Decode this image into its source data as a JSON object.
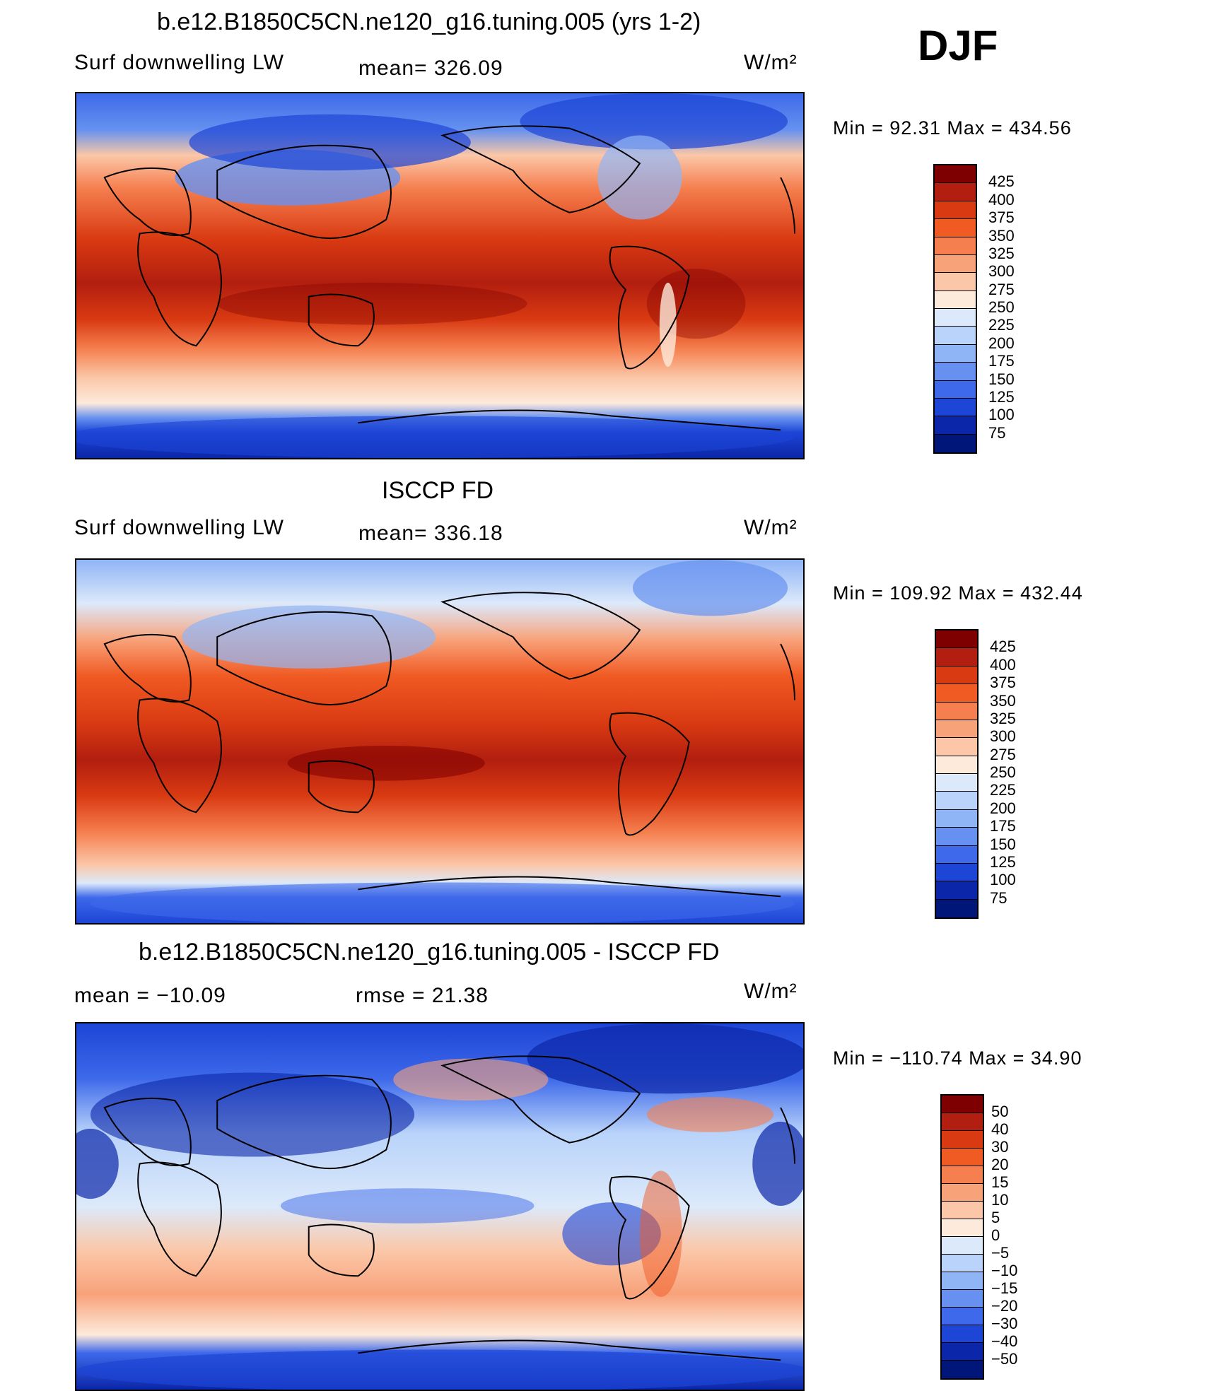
{
  "header": {
    "season": "DJF"
  },
  "panels": [
    {
      "id": "model",
      "title": "b.e12.B1850C5CN.ne120_g16.tuning.005 (yrs 1-2)",
      "left_label": "Surf downwelling LW",
      "center_label": "mean=  326.09",
      "units": "W/m²",
      "minmax": "Min =   92.31  Max  =  434.56",
      "colorbar": {
        "labels": [
          "425",
          "400",
          "375",
          "350",
          "325",
          "300",
          "275",
          "250",
          "225",
          "200",
          "175",
          "150",
          "125",
          "100",
          "75"
        ],
        "colors": [
          "#7f0000",
          "#b21e0f",
          "#d93a12",
          "#f05a23",
          "#f57f4f",
          "#f8a27a",
          "#fbc7a8",
          "#fdeadb",
          "#dce9fa",
          "#b9d3fa",
          "#90b5f6",
          "#6691f0",
          "#3d69ea",
          "#1d45d6",
          "#0b26a8",
          "#001678"
        ]
      }
    },
    {
      "id": "obs",
      "title": "ISCCP FD",
      "left_label": "Surf downwelling LW",
      "center_label": "mean=  336.18",
      "units": "W/m²",
      "minmax": "Min  =  109.92  Max  =  432.44",
      "colorbar": {
        "labels": [
          "425",
          "400",
          "375",
          "350",
          "325",
          "300",
          "275",
          "250",
          "225",
          "200",
          "175",
          "150",
          "125",
          "100",
          "75"
        ],
        "colors": [
          "#7f0000",
          "#b21e0f",
          "#d93a12",
          "#f05a23",
          "#f57f4f",
          "#f8a27a",
          "#fbc7a8",
          "#fdeadb",
          "#dce9fa",
          "#b9d3fa",
          "#90b5f6",
          "#6691f0",
          "#3d69ea",
          "#1d45d6",
          "#0b26a8",
          "#001678"
        ]
      }
    },
    {
      "id": "diff",
      "title": "b.e12.B1850C5CN.ne120_g16.tuning.005 - ISCCP FD",
      "left_label": "mean  =  −10.09",
      "center_label": "rmse  =    21.38",
      "units": "W/m²",
      "minmax": "Min  =  −110.74  Max  =    34.90",
      "colorbar": {
        "labels": [
          "50",
          "40",
          "30",
          "20",
          "15",
          "10",
          "5",
          "0",
          "−5",
          "−10",
          "−15",
          "−20",
          "−30",
          "−40",
          "−50"
        ],
        "colors": [
          "#7f0000",
          "#b21e0f",
          "#d93a12",
          "#f05a23",
          "#f57f4f",
          "#f8a27a",
          "#fbc7a8",
          "#fdeadb",
          "#dce9fa",
          "#b9d3fa",
          "#90b5f6",
          "#6691f0",
          "#3d69ea",
          "#1d45d6",
          "#0b26a8",
          "#001678"
        ]
      }
    }
  ]
}
